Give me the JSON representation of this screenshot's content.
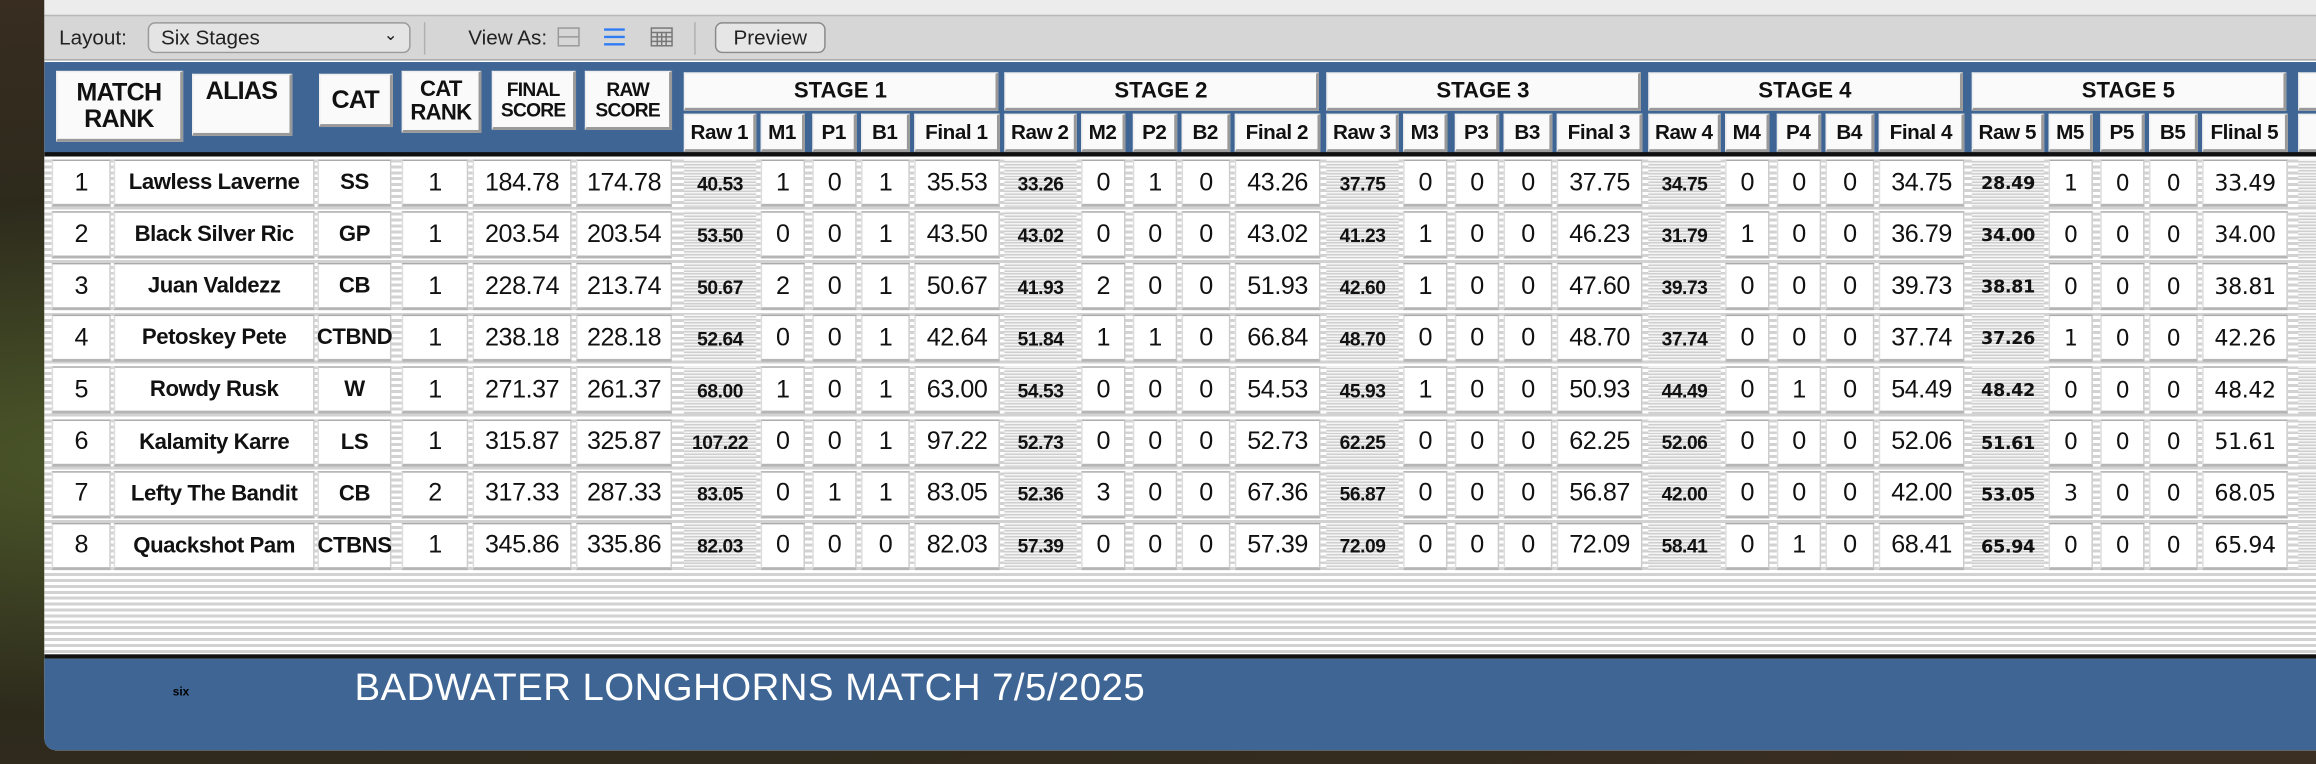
{
  "toolbar": {
    "layout_label": "Layout:",
    "layout_value": "Six Stages",
    "view_as_label": "View As:",
    "view_modes": [
      "form-view-icon",
      "list-view-icon",
      "table-view-icon"
    ],
    "active_view": "list-view-icon",
    "preview_label": "Preview"
  },
  "header": {
    "match_rank": "MATCH RANK",
    "alias": "ALIAS",
    "cat": "CAT",
    "cat_rank": "CAT RANK",
    "final_score": "FINAL SCORE",
    "raw_score": "RAW SCORE",
    "stages": [
      {
        "title": "STAGE 1",
        "raw": "Raw 1",
        "m": "M1",
        "p": "P1",
        "b": "B1",
        "final": "Final 1"
      },
      {
        "title": "STAGE 2",
        "raw": "Raw 2",
        "m": "M2",
        "p": "P2",
        "b": "B2",
        "final": "Final 2"
      },
      {
        "title": "STAGE 3",
        "raw": "Raw 3",
        "m": "M3",
        "p": "P3",
        "b": "B3",
        "final": "Final 3"
      },
      {
        "title": "STAGE 4",
        "raw": "Raw 4",
        "m": "M4",
        "p": "P4",
        "b": "B4",
        "final": "Final 4"
      },
      {
        "title": "STAGE 5",
        "raw": "Raw 5",
        "m": "M5",
        "p": "P5",
        "b": "B5",
        "final": "Flinal 5"
      }
    ]
  },
  "rows": [
    {
      "rank": "1",
      "alias": "Lawless Laverne",
      "cat": "SS",
      "cat_rank": "1",
      "final_score": "184.78",
      "raw_score": "174.78",
      "stages": [
        {
          "raw": "40.53",
          "m": "1",
          "p": "0",
          "b": "1",
          "final": "35.53"
        },
        {
          "raw": "33.26",
          "m": "0",
          "p": "1",
          "b": "0",
          "final": "43.26"
        },
        {
          "raw": "37.75",
          "m": "0",
          "p": "0",
          "b": "0",
          "final": "37.75"
        },
        {
          "raw": "34.75",
          "m": "0",
          "p": "0",
          "b": "0",
          "final": "34.75"
        },
        {
          "raw": "28.49",
          "m": "1",
          "p": "0",
          "b": "0",
          "final": "33.49"
        }
      ]
    },
    {
      "rank": "2",
      "alias": "Black Silver Ric",
      "cat": "GP",
      "cat_rank": "1",
      "final_score": "203.54",
      "raw_score": "203.54",
      "stages": [
        {
          "raw": "53.50",
          "m": "0",
          "p": "0",
          "b": "1",
          "final": "43.50"
        },
        {
          "raw": "43.02",
          "m": "0",
          "p": "0",
          "b": "0",
          "final": "43.02"
        },
        {
          "raw": "41.23",
          "m": "1",
          "p": "0",
          "b": "0",
          "final": "46.23"
        },
        {
          "raw": "31.79",
          "m": "1",
          "p": "0",
          "b": "0",
          "final": "36.79"
        },
        {
          "raw": "34.00",
          "m": "0",
          "p": "0",
          "b": "0",
          "final": "34.00"
        }
      ]
    },
    {
      "rank": "3",
      "alias": "Juan Valdezz",
      "cat": "CB",
      "cat_rank": "1",
      "final_score": "228.74",
      "raw_score": "213.74",
      "stages": [
        {
          "raw": "50.67",
          "m": "2",
          "p": "0",
          "b": "1",
          "final": "50.67"
        },
        {
          "raw": "41.93",
          "m": "2",
          "p": "0",
          "b": "0",
          "final": "51.93"
        },
        {
          "raw": "42.60",
          "m": "1",
          "p": "0",
          "b": "0",
          "final": "47.60"
        },
        {
          "raw": "39.73",
          "m": "0",
          "p": "0",
          "b": "0",
          "final": "39.73"
        },
        {
          "raw": "38.81",
          "m": "0",
          "p": "0",
          "b": "0",
          "final": "38.81"
        }
      ]
    },
    {
      "rank": "4",
      "alias": "Petoskey Pete",
      "cat": "CTBND",
      "cat_rank": "1",
      "final_score": "238.18",
      "raw_score": "228.18",
      "stages": [
        {
          "raw": "52.64",
          "m": "0",
          "p": "0",
          "b": "1",
          "final": "42.64"
        },
        {
          "raw": "51.84",
          "m": "1",
          "p": "1",
          "b": "0",
          "final": "66.84"
        },
        {
          "raw": "48.70",
          "m": "0",
          "p": "0",
          "b": "0",
          "final": "48.70"
        },
        {
          "raw": "37.74",
          "m": "0",
          "p": "0",
          "b": "0",
          "final": "37.74"
        },
        {
          "raw": "37.26",
          "m": "1",
          "p": "0",
          "b": "0",
          "final": "42.26"
        }
      ]
    },
    {
      "rank": "5",
      "alias": "Rowdy Rusk",
      "cat": "W",
      "cat_rank": "1",
      "final_score": "271.37",
      "raw_score": "261.37",
      "stages": [
        {
          "raw": "68.00",
          "m": "1",
          "p": "0",
          "b": "1",
          "final": "63.00"
        },
        {
          "raw": "54.53",
          "m": "0",
          "p": "0",
          "b": "0",
          "final": "54.53"
        },
        {
          "raw": "45.93",
          "m": "1",
          "p": "0",
          "b": "0",
          "final": "50.93"
        },
        {
          "raw": "44.49",
          "m": "0",
          "p": "1",
          "b": "0",
          "final": "54.49"
        },
        {
          "raw": "48.42",
          "m": "0",
          "p": "0",
          "b": "0",
          "final": "48.42"
        }
      ]
    },
    {
      "rank": "6",
      "alias": "Kalamity Karre",
      "cat": "LS",
      "cat_rank": "1",
      "final_score": "315.87",
      "raw_score": "325.87",
      "stages": [
        {
          "raw": "107.22",
          "m": "0",
          "p": "0",
          "b": "1",
          "final": "97.22"
        },
        {
          "raw": "52.73",
          "m": "0",
          "p": "0",
          "b": "0",
          "final": "52.73"
        },
        {
          "raw": "62.25",
          "m": "0",
          "p": "0",
          "b": "0",
          "final": "62.25"
        },
        {
          "raw": "52.06",
          "m": "0",
          "p": "0",
          "b": "0",
          "final": "52.06"
        },
        {
          "raw": "51.61",
          "m": "0",
          "p": "0",
          "b": "0",
          "final": "51.61"
        }
      ]
    },
    {
      "rank": "7",
      "alias": "Lefty The Bandit",
      "cat": "CB",
      "cat_rank": "2",
      "final_score": "317.33",
      "raw_score": "287.33",
      "stages": [
        {
          "raw": "83.05",
          "m": "0",
          "p": "1",
          "b": "1",
          "final": "83.05"
        },
        {
          "raw": "52.36",
          "m": "3",
          "p": "0",
          "b": "0",
          "final": "67.36"
        },
        {
          "raw": "56.87",
          "m": "0",
          "p": "0",
          "b": "0",
          "final": "56.87"
        },
        {
          "raw": "42.00",
          "m": "0",
          "p": "0",
          "b": "0",
          "final": "42.00"
        },
        {
          "raw": "53.05",
          "m": "3",
          "p": "0",
          "b": "0",
          "final": "68.05"
        }
      ]
    },
    {
      "rank": "8",
      "alias": "Quackshot Pam",
      "cat": "CTBNS",
      "cat_rank": "1",
      "final_score": "345.86",
      "raw_score": "335.86",
      "stages": [
        {
          "raw": "82.03",
          "m": "0",
          "p": "0",
          "b": "0",
          "final": "82.03"
        },
        {
          "raw": "57.39",
          "m": "0",
          "p": "0",
          "b": "0",
          "final": "57.39"
        },
        {
          "raw": "72.09",
          "m": "0",
          "p": "0",
          "b": "0",
          "final": "72.09"
        },
        {
          "raw": "58.41",
          "m": "0",
          "p": "1",
          "b": "0",
          "final": "68.41"
        },
        {
          "raw": "65.94",
          "m": "0",
          "p": "0",
          "b": "0",
          "final": "65.94"
        }
      ]
    }
  ],
  "footer": {
    "title": "BADWATER LONGHORNS MATCH  7/5/2025",
    "layout_tag": "six"
  },
  "colors": {
    "header_blue": "#3e6594",
    "view_active": "#2f7cf6"
  }
}
